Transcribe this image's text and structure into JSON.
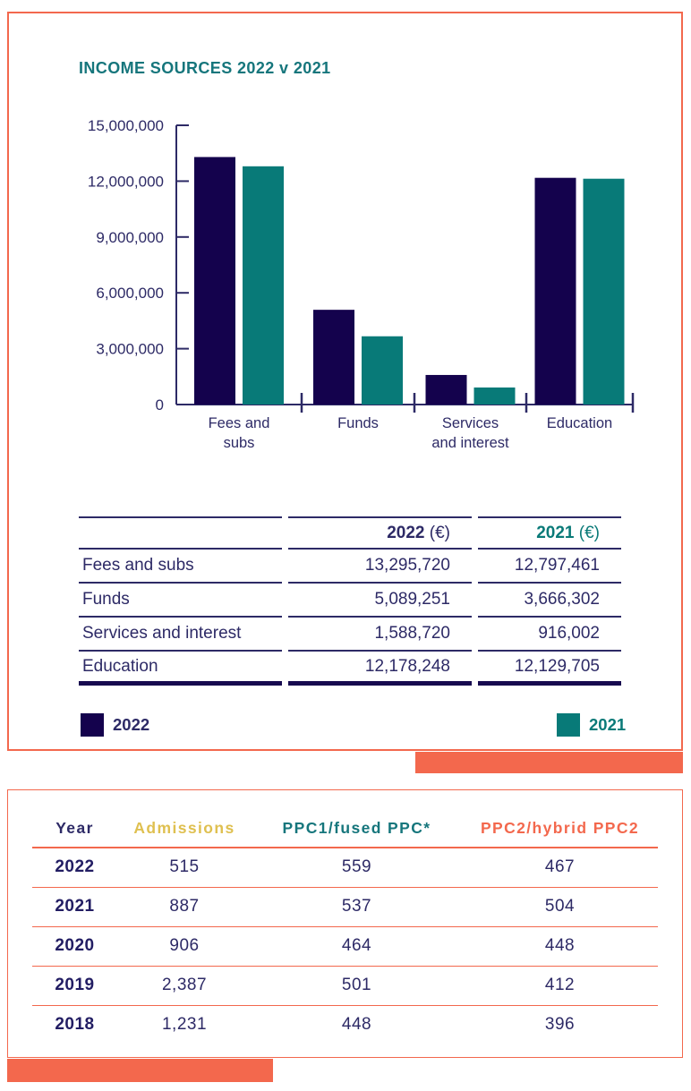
{
  "colors": {
    "accent_orange": "#f3684d",
    "navy_bar": "#14024d",
    "teal_bar": "#087a78",
    "text_navy": "#2d2a66",
    "title_teal": "#16767c",
    "gold": "#dfc050"
  },
  "chart_data": {
    "type": "bar",
    "title": "INCOME SOURCES 2022 v 2021",
    "categories": [
      "Fees and subs",
      "Funds",
      "Services and interest",
      "Education"
    ],
    "category_label_lines": [
      [
        "Fees and",
        "subs"
      ],
      [
        "Funds"
      ],
      [
        "Services",
        "and interest"
      ],
      [
        "Education"
      ]
    ],
    "series": [
      {
        "name": "2022",
        "color": "#14024d",
        "values": [
          13295720,
          5089251,
          1588720,
          12178248
        ]
      },
      {
        "name": "2021",
        "color": "#087a78",
        "values": [
          12797461,
          3666302,
          916002,
          12129705
        ]
      }
    ],
    "ylim": [
      0,
      15000000
    ],
    "yticks": [
      0,
      3000000,
      6000000,
      9000000,
      12000000,
      15000000
    ],
    "ytick_labels": [
      "0",
      "3,000,000",
      "6,000,000",
      "9,000,000",
      "12,000,000",
      "15,000,000"
    ],
    "xlabel": "",
    "ylabel": "",
    "grid": false,
    "legend_position": "bottom"
  },
  "income_box": {
    "title": "INCOME SOURCES 2022 v 2021",
    "table": {
      "col_headers": [
        {
          "year": "2022",
          "unit": "(€)"
        },
        {
          "year": "2021",
          "unit": "(€)"
        }
      ],
      "rows": [
        {
          "label": "Fees and subs",
          "v2022": "13,295,720",
          "v2021": "12,797,461"
        },
        {
          "label": "Funds",
          "v2022": "5,089,251",
          "v2021": "3,666,302"
        },
        {
          "label": "Services and interest",
          "v2022": "1,588,720",
          "v2021": "916,002"
        },
        {
          "label": "Education",
          "v2022": "12,178,248",
          "v2021": "12,129,705"
        }
      ]
    },
    "legend": [
      {
        "label": "2022",
        "color": "#14024d"
      },
      {
        "label": "2021",
        "color": "#087a78"
      }
    ]
  },
  "stats_box": {
    "headers": [
      "Year",
      "Admissions",
      "PPC1/fused PPC*",
      "PPC2/hybrid PPC2"
    ],
    "rows": [
      {
        "year": "2022",
        "values": [
          "515",
          "559",
          "467"
        ]
      },
      {
        "year": "2021",
        "values": [
          "887",
          "537",
          "504"
        ]
      },
      {
        "year": "2020",
        "values": [
          "906",
          "464",
          "448"
        ]
      },
      {
        "year": "2019",
        "values": [
          "2,387",
          "501",
          "412"
        ]
      },
      {
        "year": "2018",
        "values": [
          "1,231",
          "448",
          "396"
        ]
      }
    ]
  }
}
